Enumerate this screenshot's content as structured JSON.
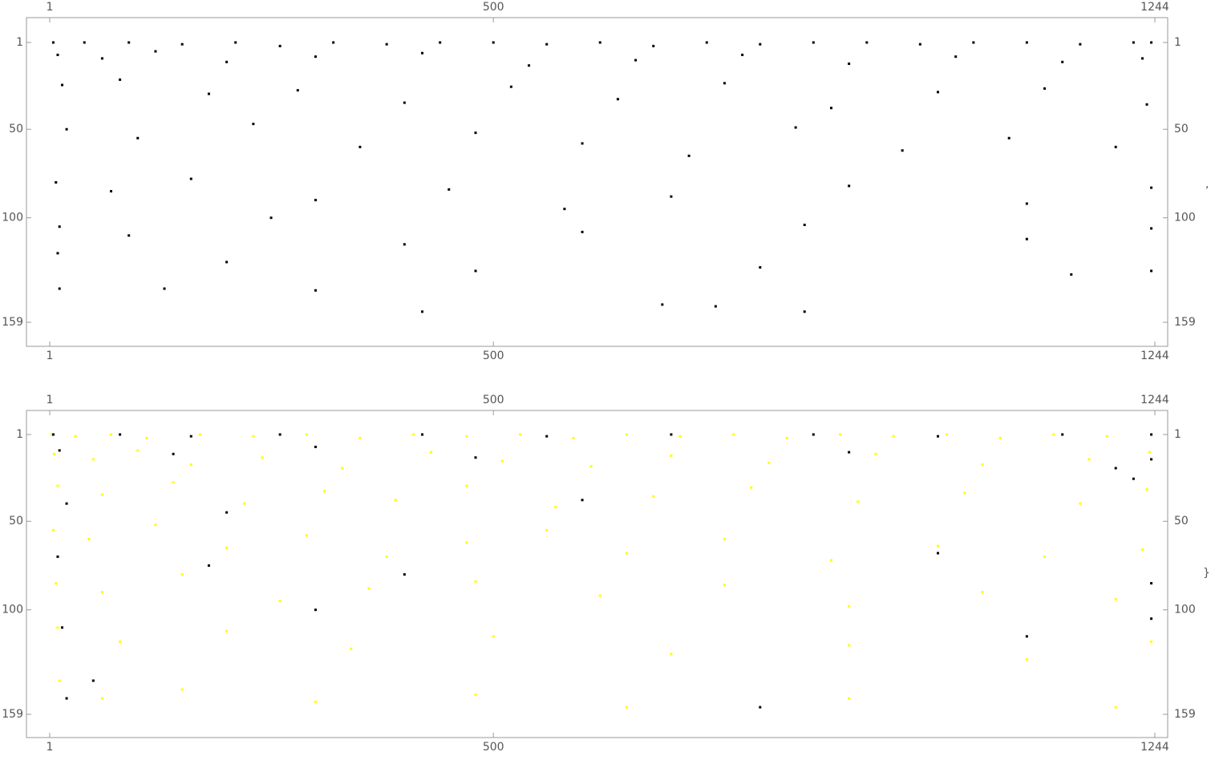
{
  "chart_data": [
    {
      "type": "matrix",
      "xlim": [
        1,
        1244
      ],
      "ylim": [
        1,
        159
      ],
      "xticks": [
        1,
        500,
        1244
      ],
      "yticks": [
        1,
        50,
        100,
        159
      ],
      "layers": [
        {
          "color": "#000000",
          "cells": [
            [
              5,
              1
            ],
            [
              40,
              1
            ],
            [
              90,
              1
            ],
            [
              150,
              2
            ],
            [
              210,
              1
            ],
            [
              260,
              3
            ],
            [
              320,
              1
            ],
            [
              380,
              2
            ],
            [
              440,
              1
            ],
            [
              500,
              1
            ],
            [
              560,
              2
            ],
            [
              620,
              1
            ],
            [
              680,
              3
            ],
            [
              740,
              1
            ],
            [
              800,
              2
            ],
            [
              860,
              1
            ],
            [
              920,
              1
            ],
            [
              980,
              2
            ],
            [
              1040,
              1
            ],
            [
              1100,
              1
            ],
            [
              1160,
              2
            ],
            [
              1220,
              1
            ],
            [
              1240,
              1
            ],
            [
              10,
              8
            ],
            [
              60,
              10
            ],
            [
              120,
              6
            ],
            [
              200,
              12
            ],
            [
              300,
              9
            ],
            [
              420,
              7
            ],
            [
              540,
              14
            ],
            [
              660,
              11
            ],
            [
              780,
              8
            ],
            [
              900,
              13
            ],
            [
              1020,
              9
            ],
            [
              1140,
              12
            ],
            [
              1230,
              10
            ],
            [
              15,
              25
            ],
            [
              80,
              22
            ],
            [
              180,
              30
            ],
            [
              280,
              28
            ],
            [
              400,
              35
            ],
            [
              520,
              26
            ],
            [
              640,
              33
            ],
            [
              760,
              24
            ],
            [
              880,
              38
            ],
            [
              1000,
              29
            ],
            [
              1120,
              27
            ],
            [
              1235,
              36
            ],
            [
              20,
              50
            ],
            [
              100,
              55
            ],
            [
              230,
              47
            ],
            [
              350,
              60
            ],
            [
              480,
              52
            ],
            [
              600,
              58
            ],
            [
              720,
              65
            ],
            [
              840,
              49
            ],
            [
              960,
              62
            ],
            [
              1080,
              55
            ],
            [
              1200,
              60
            ],
            [
              8,
              80
            ],
            [
              70,
              85
            ],
            [
              160,
              78
            ],
            [
              300,
              90
            ],
            [
              450,
              84
            ],
            [
              580,
              95
            ],
            [
              700,
              88
            ],
            [
              900,
              82
            ],
            [
              1100,
              92
            ],
            [
              1240,
              83
            ],
            [
              12,
              105
            ],
            [
              90,
              110
            ],
            [
              250,
              100
            ],
            [
              400,
              115
            ],
            [
              600,
              108
            ],
            [
              850,
              104
            ],
            [
              1100,
              112
            ],
            [
              1240,
              106
            ],
            [
              10,
              120
            ],
            [
              200,
              125
            ],
            [
              480,
              130
            ],
            [
              800,
              128
            ],
            [
              1150,
              132
            ],
            [
              1240,
              130
            ],
            [
              12,
              140
            ],
            [
              130,
              140
            ],
            [
              300,
              141
            ],
            [
              420,
              153
            ],
            [
              690,
              149
            ],
            [
              750,
              150
            ],
            [
              850,
              153
            ]
          ]
        }
      ]
    },
    {
      "type": "matrix",
      "xlim": [
        1,
        1244
      ],
      "ylim": [
        1,
        159
      ],
      "xticks": [
        1,
        500,
        1244
      ],
      "yticks": [
        1,
        50,
        100,
        159
      ],
      "layers": [
        {
          "color": "#ffff00",
          "cells": [
            [
              3,
              1
            ],
            [
              30,
              2
            ],
            [
              70,
              1
            ],
            [
              110,
              3
            ],
            [
              170,
              1
            ],
            [
              230,
              2
            ],
            [
              290,
              1
            ],
            [
              350,
              3
            ],
            [
              410,
              1
            ],
            [
              470,
              2
            ],
            [
              530,
              1
            ],
            [
              590,
              3
            ],
            [
              650,
              1
            ],
            [
              710,
              2
            ],
            [
              770,
              1
            ],
            [
              830,
              3
            ],
            [
              890,
              1
            ],
            [
              950,
              2
            ],
            [
              1010,
              1
            ],
            [
              1070,
              3
            ],
            [
              1130,
              1
            ],
            [
              1190,
              2
            ],
            [
              1240,
              1
            ],
            [
              6,
              12
            ],
            [
              50,
              15
            ],
            [
              100,
              10
            ],
            [
              160,
              18
            ],
            [
              240,
              14
            ],
            [
              330,
              20
            ],
            [
              430,
              11
            ],
            [
              510,
              16
            ],
            [
              610,
              19
            ],
            [
              700,
              13
            ],
            [
              810,
              17
            ],
            [
              930,
              12
            ],
            [
              1050,
              18
            ],
            [
              1170,
              15
            ],
            [
              1238,
              11
            ],
            [
              10,
              30
            ],
            [
              60,
              35
            ],
            [
              140,
              28
            ],
            [
              220,
              40
            ],
            [
              310,
              33
            ],
            [
              390,
              38
            ],
            [
              470,
              30
            ],
            [
              570,
              42
            ],
            [
              680,
              36
            ],
            [
              790,
              31
            ],
            [
              910,
              39
            ],
            [
              1030,
              34
            ],
            [
              1160,
              40
            ],
            [
              1235,
              32
            ],
            [
              5,
              55
            ],
            [
              45,
              60
            ],
            [
              120,
              52
            ],
            [
              200,
              65
            ],
            [
              290,
              58
            ],
            [
              380,
              70
            ],
            [
              470,
              62
            ],
            [
              560,
              55
            ],
            [
              650,
              68
            ],
            [
              760,
              60
            ],
            [
              880,
              72
            ],
            [
              1000,
              64
            ],
            [
              1120,
              70
            ],
            [
              1230,
              66
            ],
            [
              8,
              85
            ],
            [
              60,
              90
            ],
            [
              150,
              80
            ],
            [
              260,
              95
            ],
            [
              360,
              88
            ],
            [
              480,
              84
            ],
            [
              620,
              92
            ],
            [
              760,
              86
            ],
            [
              900,
              98
            ],
            [
              1050,
              90
            ],
            [
              1200,
              94
            ],
            [
              10,
              110
            ],
            [
              80,
              118
            ],
            [
              200,
              112
            ],
            [
              340,
              122
            ],
            [
              500,
              115
            ],
            [
              700,
              125
            ],
            [
              900,
              120
            ],
            [
              1100,
              128
            ],
            [
              1240,
              118
            ],
            [
              12,
              140
            ],
            [
              60,
              150
            ],
            [
              150,
              145
            ],
            [
              300,
              152
            ],
            [
              480,
              148
            ],
            [
              650,
              155
            ],
            [
              900,
              150
            ],
            [
              1200,
              155
            ]
          ]
        },
        {
          "color": "#000000",
          "cells": [
            [
              5,
              1
            ],
            [
              80,
              1
            ],
            [
              160,
              2
            ],
            [
              260,
              1
            ],
            [
              420,
              1
            ],
            [
              560,
              2
            ],
            [
              700,
              1
            ],
            [
              860,
              1
            ],
            [
              1000,
              2
            ],
            [
              1140,
              1
            ],
            [
              1240,
              1
            ],
            [
              12,
              10
            ],
            [
              140,
              12
            ],
            [
              300,
              8
            ],
            [
              480,
              14
            ],
            [
              900,
              11
            ],
            [
              1200,
              20
            ],
            [
              1240,
              15
            ],
            [
              20,
              40
            ],
            [
              200,
              45
            ],
            [
              600,
              38
            ],
            [
              1220,
              26
            ],
            [
              10,
              70
            ],
            [
              180,
              75
            ],
            [
              400,
              80
            ],
            [
              1000,
              68
            ],
            [
              1240,
              85
            ],
            [
              15,
              110
            ],
            [
              300,
              100
            ],
            [
              1100,
              115
            ],
            [
              1240,
              105
            ],
            [
              20,
              150
            ],
            [
              50,
              140
            ],
            [
              800,
              155
            ]
          ]
        }
      ]
    }
  ],
  "separators": [
    ",",
    "}"
  ]
}
